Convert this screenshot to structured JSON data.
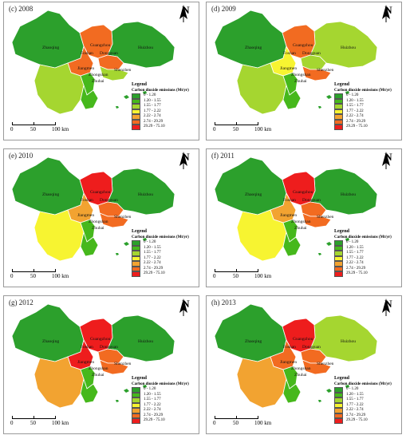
{
  "legend": {
    "title": "Legend",
    "subtitle": "Carbon dioxide emissions (Mt/yr)",
    "classes": [
      {
        "label": "0 - 1.20",
        "color": "#2ca02c"
      },
      {
        "label": "1.20 - 1.55",
        "color": "#46b81c"
      },
      {
        "label": "1.55 - 1.77",
        "color": "#a5d630"
      },
      {
        "label": "1.77 - 2.22",
        "color": "#f7f431"
      },
      {
        "label": "2.22 - 2.74",
        "color": "#f2a331"
      },
      {
        "label": "2.74 - 29.29",
        "color": "#f26b21"
      },
      {
        "label": "29.29 - 75.10",
        "color": "#ee1d1d"
      }
    ]
  },
  "scale": {
    "ticks": [
      "0",
      "50",
      "100 km"
    ]
  },
  "north_label": "N",
  "cities": {
    "zhaoqing": "Zhaoqing",
    "guangzhou": "Guangzhou",
    "foshan": "Foshan",
    "dongguan": "Dongguan",
    "huizhou": "Huizhou",
    "jiangmen": "Jiangmen",
    "zhongshan": "Zhongshan",
    "shenzhen": "Shenzhen",
    "zhuhai": "Zhuhai"
  },
  "panels": [
    {
      "title": "(c) 2008",
      "classes": {
        "zhaoqing": 0,
        "guangzhou": 5,
        "foshan": 5,
        "dongguan": 5,
        "huizhou": 0,
        "jiangmen": 2,
        "zhongshan": 1,
        "shenzhen": 2,
        "zhuhai": 1
      }
    },
    {
      "title": "(d) 2009",
      "classes": {
        "zhaoqing": 0,
        "guangzhou": 5,
        "foshan": 3,
        "dongguan": 2,
        "huizhou": 2,
        "jiangmen": 2,
        "zhongshan": 1,
        "shenzhen": 5,
        "zhuhai": 1
      }
    },
    {
      "title": "(e) 2010",
      "classes": {
        "zhaoqing": 0,
        "guangzhou": 6,
        "foshan": 4,
        "dongguan": 5,
        "huizhou": 0,
        "jiangmen": 3,
        "zhongshan": 1,
        "shenzhen": 5,
        "zhuhai": 1
      }
    },
    {
      "title": "(f) 2011",
      "classes": {
        "zhaoqing": 0,
        "guangzhou": 6,
        "foshan": 4,
        "dongguan": 5,
        "huizhou": 0,
        "jiangmen": 3,
        "zhongshan": 1,
        "shenzhen": 5,
        "zhuhai": 1
      }
    },
    {
      "title": "(g) 2012",
      "classes": {
        "zhaoqing": 0,
        "guangzhou": 6,
        "foshan": 6,
        "dongguan": 5,
        "huizhou": 0,
        "jiangmen": 4,
        "zhongshan": 1,
        "shenzhen": 5,
        "zhuhai": 1
      }
    },
    {
      "title": "(h) 2013",
      "classes": {
        "zhaoqing": 0,
        "guangzhou": 6,
        "foshan": 5,
        "dongguan": 5,
        "huizhou": 2,
        "jiangmen": 4,
        "zhongshan": 1,
        "shenzhen": 5,
        "zhuhai": 1
      }
    }
  ]
}
